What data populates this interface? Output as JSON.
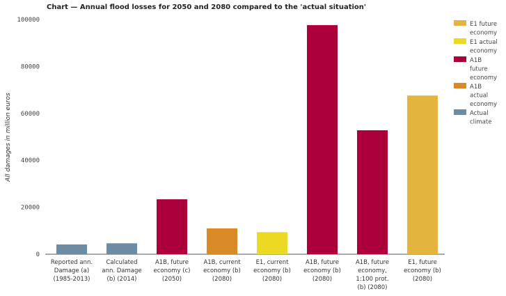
{
  "chart_data": {
    "type": "bar",
    "title": "Chart — Annual flood losses for 2050 and 2080 compared to the 'actual situation'",
    "xlabel": "",
    "ylabel": "All damages in million euros",
    "ylim": [
      0,
      100000
    ],
    "yticks": [
      0,
      20000,
      40000,
      60000,
      80000,
      100000
    ],
    "grid": false,
    "legend_position": "right",
    "categories": [
      [
        "Reported ann.",
        "Damage (a)",
        "(1985-2013)"
      ],
      [
        "Calculated",
        "ann. Damage",
        "(b) (2014)"
      ],
      [
        "A1B, future",
        "economy (c)",
        "(2050)"
      ],
      [
        "A1B, current",
        "economy (b)",
        "(2080)"
      ],
      [
        "E1, current",
        "economy (b)",
        "(2080)"
      ],
      [
        "A1B, future",
        "economy (b)",
        "(2080)"
      ],
      [
        "A1B, future",
        "economy,",
        "1:100 prot.",
        "(b) (2080)"
      ],
      [
        "E1, future",
        "economy (b)",
        "(2080)"
      ]
    ],
    "values": [
      4150,
      4650,
      23400,
      11000,
      9400,
      97600,
      52800,
      67600
    ],
    "bar_series": [
      "Actual climate",
      "Actual climate",
      "A1B future economy",
      "A1B actual economy",
      "E1 actual economy",
      "A1B future economy",
      "A1B future economy",
      "E1 future economy"
    ],
    "legend": [
      {
        "name": "E1 future economy",
        "lines": [
          "E1 future",
          "economy"
        ],
        "color": "#e3b53c"
      },
      {
        "name": "E1 actual economy",
        "lines": [
          "E1 actual",
          "economy"
        ],
        "color": "#ecd924"
      },
      {
        "name": "A1B future economy",
        "lines": [
          "A1B",
          "future",
          "economy"
        ],
        "color": "#ab003c"
      },
      {
        "name": "A1B actual economy",
        "lines": [
          "A1B",
          "actual",
          "economy"
        ],
        "color": "#d88a26"
      },
      {
        "name": "Actual climate",
        "lines": [
          "Actual",
          "climate"
        ],
        "color": "#6d8ba3"
      }
    ]
  }
}
